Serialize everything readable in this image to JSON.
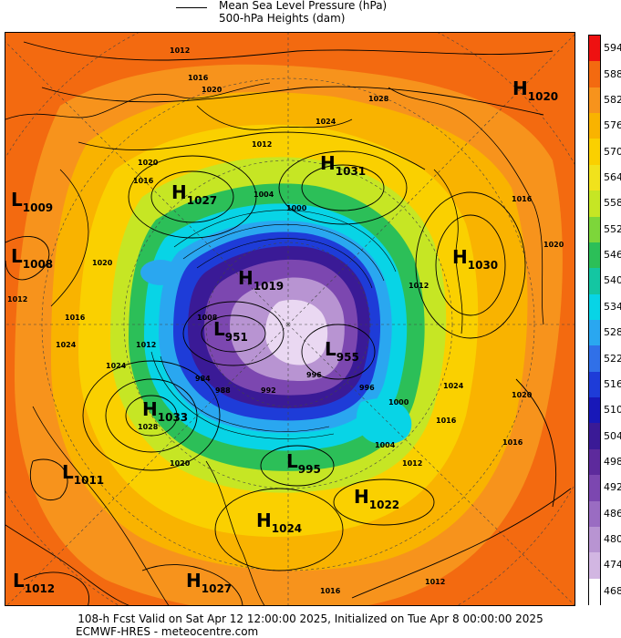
{
  "legend": {
    "line1": "Mean Sea Level Pressure (hPa)",
    "line2": "500-hPa Heights (dam)"
  },
  "colorbar": {
    "labels": [
      "594",
      "588",
      "582",
      "576",
      "570",
      "564",
      "558",
      "552",
      "546",
      "540",
      "534",
      "528",
      "522",
      "516",
      "510",
      "504",
      "498",
      "492",
      "486",
      "480",
      "474",
      "468"
    ],
    "colors": [
      "#ee1111",
      "#f36a10",
      "#f7931c",
      "#f9b300",
      "#fad000",
      "#f1e21c",
      "#c6e624",
      "#7dd63a",
      "#2cbf58",
      "#14c6a2",
      "#08d4e6",
      "#2aa7f0",
      "#3070e8",
      "#1e3cd8",
      "#1818b8",
      "#3a1a96",
      "#5d2a9c",
      "#7c47b0",
      "#9a6cc2",
      "#b894d2",
      "#d2b6e2",
      "#ffffff"
    ]
  },
  "pressure_centers": [
    {
      "kind": "H",
      "value": "1020"
    },
    {
      "kind": "H",
      "value": "1031"
    },
    {
      "kind": "H",
      "value": "1027"
    },
    {
      "kind": "L",
      "value": "1009"
    },
    {
      "kind": "L",
      "value": "1008"
    },
    {
      "kind": "H",
      "value": "1030"
    },
    {
      "kind": "H",
      "value": "1019"
    },
    {
      "kind": "L",
      "value": "951"
    },
    {
      "kind": "L",
      "value": "955"
    },
    {
      "kind": "H",
      "value": "1033"
    },
    {
      "kind": "L",
      "value": "995"
    },
    {
      "kind": "L",
      "value": "1011"
    },
    {
      "kind": "H",
      "value": "1022"
    },
    {
      "kind": "H",
      "value": "1024"
    },
    {
      "kind": "L",
      "value": "1012"
    },
    {
      "kind": "H",
      "value": "1027"
    }
  ],
  "isobar_labels": [
    "1012",
    "1016",
    "1020",
    "1024",
    "1028",
    "1012",
    "1016",
    "1020",
    "1024",
    "1012",
    "1016",
    "1020",
    "1024",
    "1028",
    "1016",
    "1020",
    "1024",
    "1012",
    "996",
    "1000",
    "1004",
    "1012",
    "1016",
    "1020",
    "1016",
    "1012",
    "1016",
    "1020",
    "984",
    "988",
    "992",
    "996",
    "1000",
    "1004",
    "1008",
    "1012"
  ],
  "footer": {
    "line1": "108-h Fcst Valid on Sat Apr 12 12:00:00 2025, Initialized on Tue Apr  8 00:00:00 2025",
    "line2": "ECMWF-HRES  - meteocentre.com"
  }
}
